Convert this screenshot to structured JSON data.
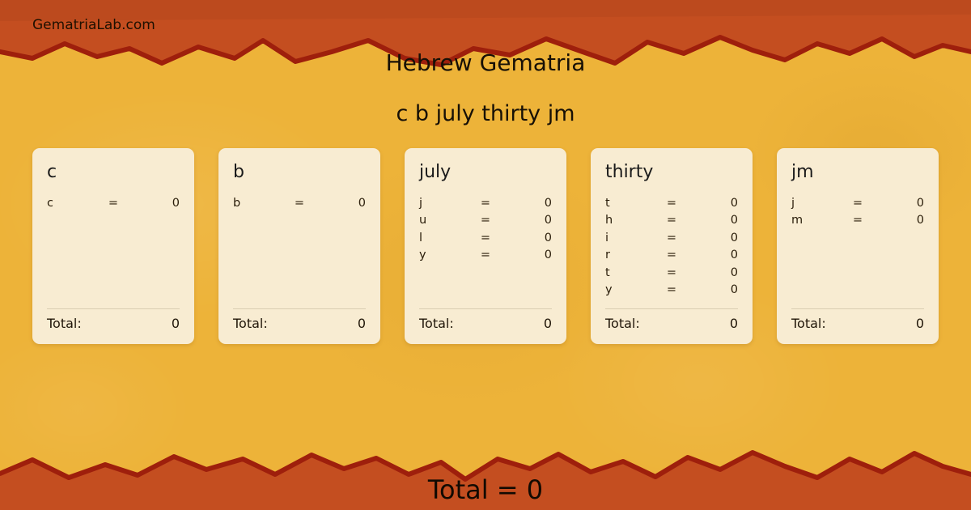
{
  "site": {
    "brand": "GematriaLab.com"
  },
  "header": {
    "title": "Hebrew Gematria",
    "phrase": "c b july thirty jm"
  },
  "symbols": {
    "equals": "="
  },
  "cards": [
    {
      "word": "c",
      "rows": [
        {
          "letter": "c",
          "value": "0"
        }
      ],
      "total_label": "Total:",
      "total": "0"
    },
    {
      "word": "b",
      "rows": [
        {
          "letter": "b",
          "value": "0"
        }
      ],
      "total_label": "Total:",
      "total": "0"
    },
    {
      "word": "july",
      "rows": [
        {
          "letter": "j",
          "value": "0"
        },
        {
          "letter": "u",
          "value": "0"
        },
        {
          "letter": "l",
          "value": "0"
        },
        {
          "letter": "y",
          "value": "0"
        }
      ],
      "total_label": "Total:",
      "total": "0"
    },
    {
      "word": "thirty",
      "rows": [
        {
          "letter": "t",
          "value": "0"
        },
        {
          "letter": "h",
          "value": "0"
        },
        {
          "letter": "i",
          "value": "0"
        },
        {
          "letter": "r",
          "value": "0"
        },
        {
          "letter": "t",
          "value": "0"
        },
        {
          "letter": "y",
          "value": "0"
        }
      ],
      "total_label": "Total:",
      "total": "0"
    },
    {
      "word": "jm",
      "rows": [
        {
          "letter": "j",
          "value": "0"
        },
        {
          "letter": "m",
          "value": "0"
        }
      ],
      "total_label": "Total:",
      "total": "0"
    }
  ],
  "footer": {
    "total_text": "Total = 0"
  },
  "colors": {
    "background_yellow": "#edb339",
    "band_orange": "#c44e20",
    "tear_line_red": "#9e1f0c",
    "card_cream": "#f8ecd2",
    "text_dark": "#1c1206"
  }
}
